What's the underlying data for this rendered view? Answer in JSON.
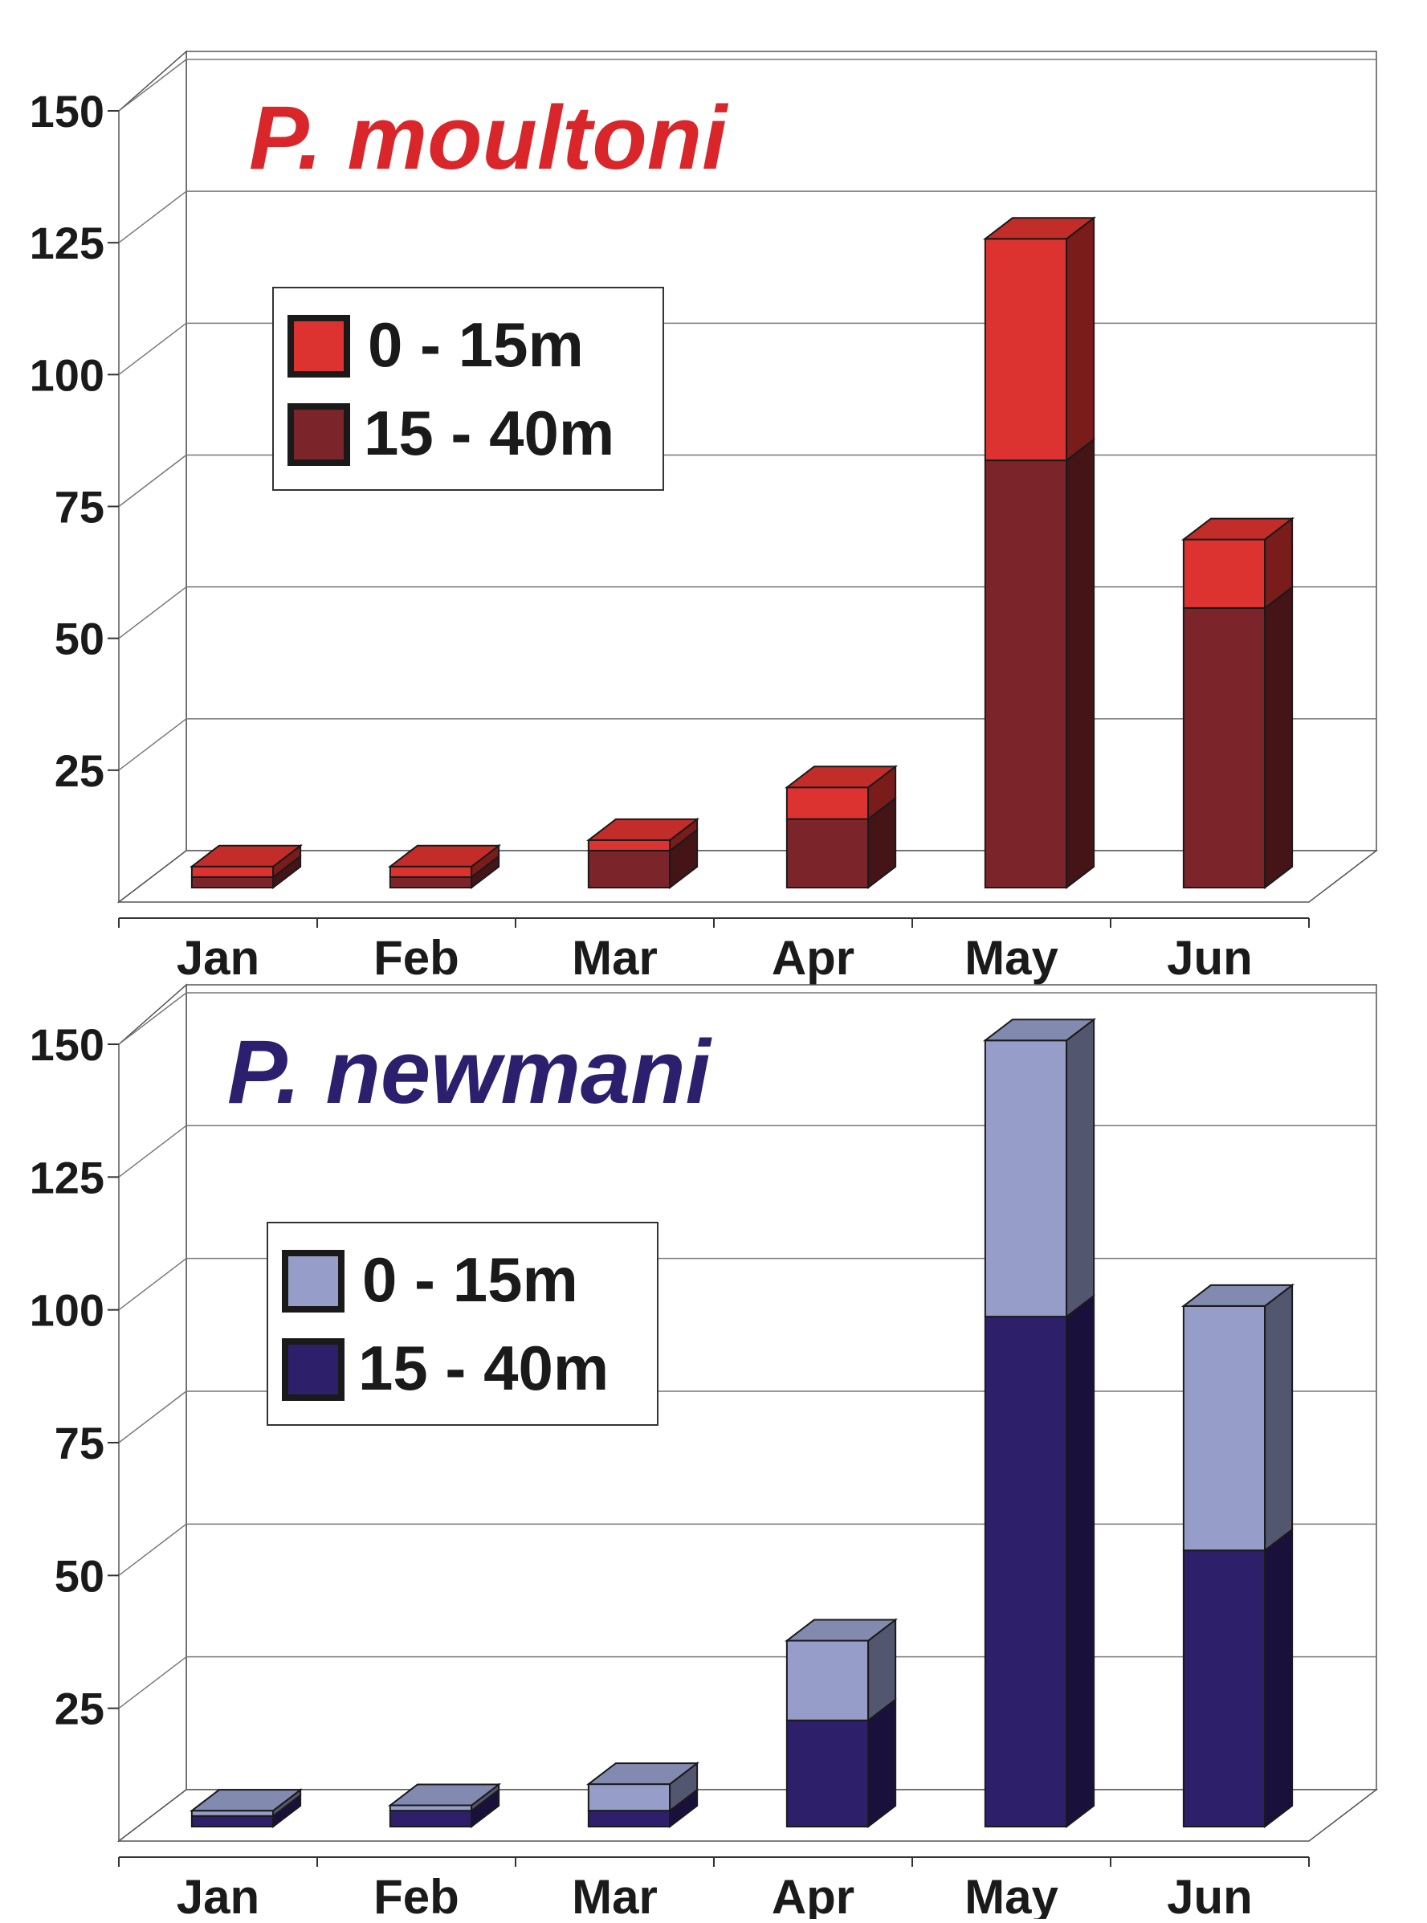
{
  "chart_data": [
    {
      "type": "bar",
      "stacked": true,
      "title": "P. moultoni",
      "title_color": "#d9262b",
      "categories": [
        "Jan",
        "Feb",
        "Mar",
        "Apr",
        "May",
        "Jun"
      ],
      "series": [
        {
          "name": "15 - 40m",
          "values": [
            2,
            2,
            7,
            13,
            81,
            53
          ],
          "color": "#7b252a"
        },
        {
          "name": "0 - 15m",
          "values": [
            2,
            2,
            2,
            6,
            42,
            13
          ],
          "color": "#dc3330"
        }
      ],
      "yticks": [
        "25",
        "50",
        "75",
        "100",
        "125",
        "150"
      ],
      "ylim": [
        0,
        150
      ],
      "grid": true,
      "legend": {
        "placement": "upper-left",
        "labels": [
          "0 - 15m",
          "15 - 40m"
        ]
      }
    },
    {
      "type": "bar",
      "stacked": true,
      "title": "P. newmani",
      "title_color": "#2c1f6e",
      "categories": [
        "Jan",
        "Feb",
        "Mar",
        "Apr",
        "May",
        "Jun"
      ],
      "series": [
        {
          "name": "15 - 40m",
          "values": [
            2,
            3,
            3,
            20,
            96,
            52
          ],
          "color": "#2e1f6b"
        },
        {
          "name": "0 - 15m",
          "values": [
            1,
            1,
            5,
            15,
            52,
            46
          ],
          "color": "#959dc8"
        }
      ],
      "yticks": [
        "25",
        "50",
        "75",
        "100",
        "125",
        "150"
      ],
      "ylim": [
        0,
        150
      ],
      "grid": true,
      "legend": {
        "placement": "upper-left",
        "labels": [
          "0 - 15m",
          "15 - 40m"
        ]
      }
    }
  ]
}
